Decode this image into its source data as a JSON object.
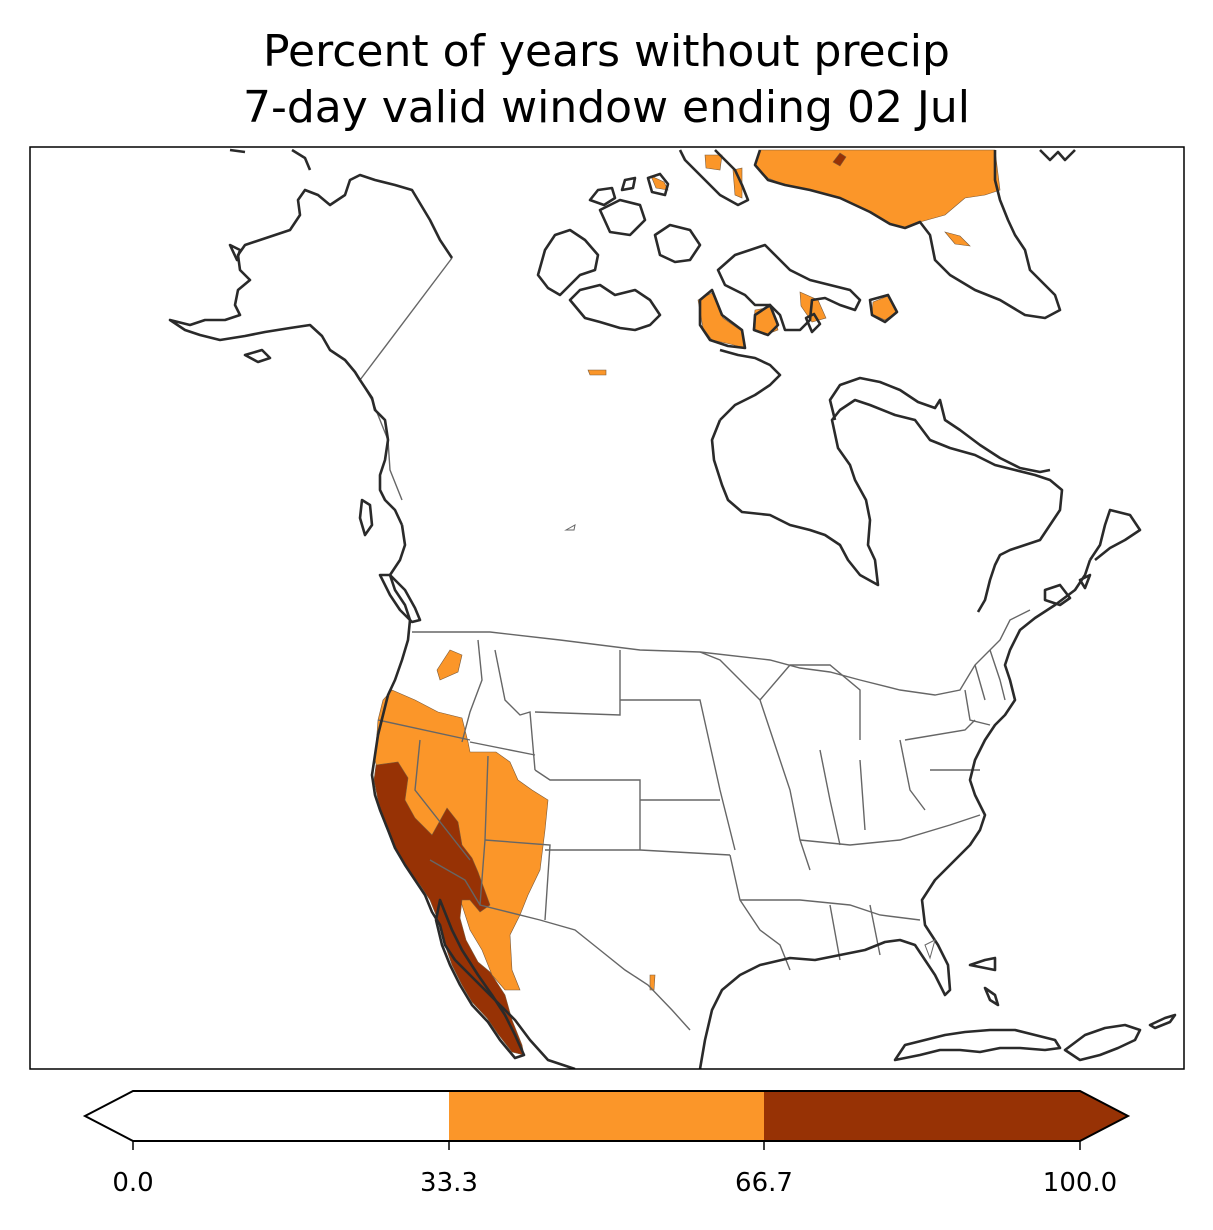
{
  "title": {
    "line1": "Percent of years without precip",
    "line2": "7-day valid window ending 02 Jul"
  },
  "colorbar": {
    "ticks": [
      "0.0",
      "33.3",
      "66.7",
      "100.0"
    ],
    "bins": [
      {
        "range": [
          0.0,
          33.3
        ],
        "color": "#ffffff"
      },
      {
        "range": [
          33.3,
          66.7
        ],
        "color": "#fb9629"
      },
      {
        "range": [
          66.7,
          100.0
        ],
        "color": "#973205"
      }
    ],
    "extend": "both"
  },
  "map": {
    "region": "North America",
    "colors": {
      "coast": "#2a2a2a",
      "borders": "#666666",
      "low_bin": "#fb9629",
      "high_bin": "#973205"
    }
  }
}
